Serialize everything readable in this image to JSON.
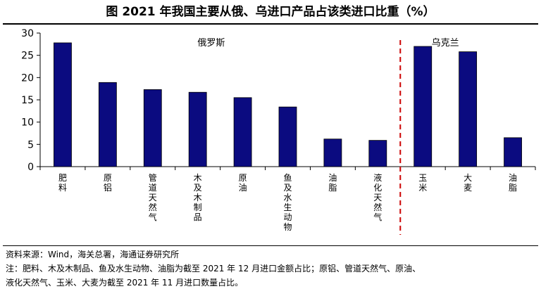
{
  "title": "图  2021 年我国主要从俄、乌进口产品占该类进口比重（%）",
  "chart_data": {
    "type": "bar",
    "categories": [
      "肥料",
      "原铝",
      "管道天然气",
      "木及木制品",
      "原油",
      "鱼及水生动物",
      "油脂",
      "液化天然气",
      "玉米",
      "大麦",
      "油脂"
    ],
    "values": [
      27.8,
      18.9,
      17.3,
      16.7,
      15.5,
      13.4,
      6.2,
      5.9,
      27.0,
      25.8,
      6.5
    ],
    "groups": [
      {
        "label": "俄罗斯",
        "start": 0,
        "end": 7
      },
      {
        "label": "乌克兰",
        "start": 8,
        "end": 10
      }
    ],
    "ylim": [
      0,
      30
    ],
    "yticks": [
      0,
      5,
      10,
      15,
      20,
      25,
      30
    ],
    "bar_color": "#0b0b80",
    "divider_color": "#cc0000",
    "grid": false,
    "xlabel": "",
    "ylabel": ""
  },
  "notes": {
    "source": "资料来源：Wind，海关总署，海通证券研究所",
    "note_line1": "注：肥料、木及木制品、鱼及水生动物、油脂为截至 2021 年 12 月进口金额占比；原铝、管道天然气、原油、",
    "note_line2": "液化天然气、玉米、大麦为截至 2021 年 11 月进口数量占比。"
  }
}
